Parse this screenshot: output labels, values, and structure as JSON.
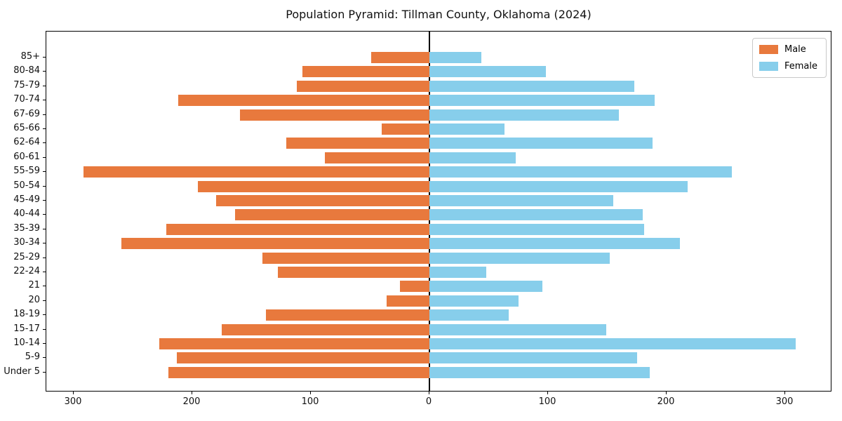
{
  "title": "Population Pyramid: Tillman County, Oklahoma (2024)",
  "legend": {
    "items": [
      {
        "label": "Male",
        "color": "#E8793D"
      },
      {
        "label": "Female",
        "color": "#87CEEB"
      }
    ]
  },
  "chart_data": {
    "type": "bar",
    "subtype": "population-pyramid",
    "orientation": "horizontal",
    "title": "Population Pyramid: Tillman County, Oklahoma (2024)",
    "xlabel": "",
    "ylabel": "",
    "grid": false,
    "legend_position": "upper right",
    "categories_top_to_bottom": [
      "85+",
      "80-84",
      "75-79",
      "70-74",
      "67-69",
      "65-66",
      "62-64",
      "60-61",
      "55-59",
      "50-54",
      "45-49",
      "40-44",
      "35-39",
      "30-34",
      "25-29",
      "22-24",
      "21",
      "20",
      "18-19",
      "15-17",
      "10-14",
      "5-9",
      "Under 5"
    ],
    "series": [
      {
        "name": "Male",
        "side": "left",
        "color": "#E8793D",
        "values": [
          49,
          107,
          112,
          212,
          160,
          40,
          121,
          88,
          292,
          195,
          180,
          164,
          222,
          260,
          141,
          128,
          25,
          36,
          138,
          175,
          228,
          213,
          220
        ]
      },
      {
        "name": "Female",
        "side": "right",
        "color": "#87CEEB",
        "values": [
          44,
          98,
          173,
          190,
          160,
          63,
          188,
          73,
          255,
          218,
          155,
          180,
          181,
          211,
          152,
          48,
          95,
          75,
          67,
          149,
          309,
          175,
          186
        ]
      }
    ],
    "x_tick_values": [
      -300,
      -200,
      -100,
      0,
      100,
      200,
      300
    ],
    "x_tick_labels": [
      "300",
      "200",
      "100",
      "0",
      "100",
      "200",
      "300"
    ],
    "xlim": [
      -323,
      339
    ],
    "axis_color": "#000000",
    "zero_line": true
  }
}
